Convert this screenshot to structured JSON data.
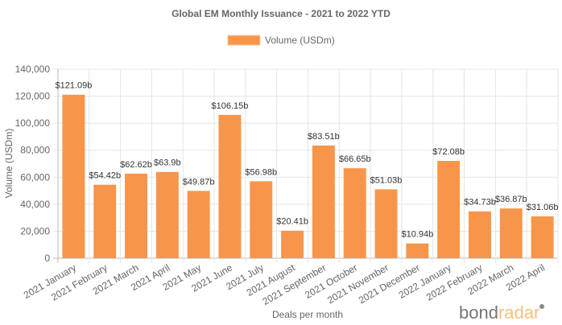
{
  "chart_data": {
    "type": "bar",
    "title": "Global EM Monthly Issuance - 2021 to 2022 YTD",
    "legend": {
      "label": "Volume (USDm)",
      "position": "top"
    },
    "xlabel": "Deals per month",
    "ylabel": "Volume (USDm)",
    "ylim": [
      0,
      140000
    ],
    "yticks": [
      "0",
      "20,000",
      "40,000",
      "60,000",
      "80,000",
      "100,000",
      "120,000",
      "140,000"
    ],
    "grid": true,
    "categories": [
      "2021 January",
      "2021 February",
      "2021 March",
      "2021 April",
      "2021 May",
      "2021 June",
      "2021 July",
      "2021 August",
      "2021 September",
      "2021 October",
      "2021 November",
      "2021 December",
      "2022 January",
      "2022 February",
      "2022 March",
      "2022 April"
    ],
    "values": [
      121090,
      54420,
      62620,
      63900,
      49870,
      106150,
      56980,
      20410,
      83510,
      66650,
      51030,
      10940,
      72080,
      34730,
      36870,
      31060
    ],
    "data_labels": [
      "$121.09b",
      "$54.42b",
      "$62.62b",
      "$63.9b",
      "$49.87b",
      "$106.15b",
      "$56.98b",
      "$20.41b",
      "$83.51b",
      "$66.65b",
      "$51.03b",
      "$10.94b",
      "$72.08b",
      "$34.73b",
      "$36.87b",
      "$31.06b"
    ],
    "bar_color": "#f7964a"
  },
  "logo": {
    "part1": "bond",
    "part2": "radar"
  }
}
